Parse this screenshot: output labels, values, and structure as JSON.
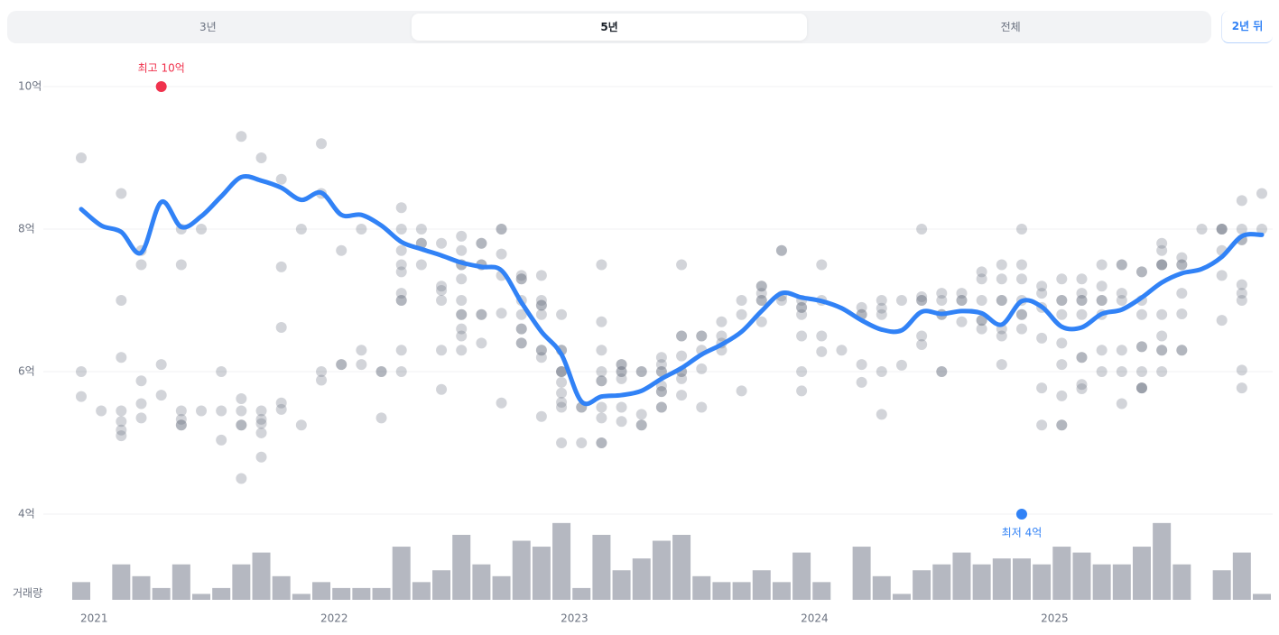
{
  "tabs": [
    {
      "label": "3년",
      "active": false
    },
    {
      "label": "5년",
      "active": true
    },
    {
      "label": "전체",
      "active": false
    }
  ],
  "future_button": "2년 뒤",
  "chart_data": {
    "type": "scatter",
    "categories": [
      "2021",
      null,
      null,
      null,
      null,
      null,
      null,
      null,
      null,
      null,
      null,
      null,
      "2022",
      null,
      null,
      null,
      null,
      null,
      null,
      null,
      null,
      null,
      null,
      null,
      "2023",
      null,
      null,
      null,
      null,
      null,
      null,
      null,
      null,
      null,
      null,
      null,
      "2024",
      null,
      null,
      null,
      null,
      null,
      null,
      null,
      null,
      null,
      null,
      null,
      "2025",
      null,
      null,
      null,
      null,
      null,
      null,
      null,
      null,
      null,
      null,
      null
    ],
    "ylim": [
      4,
      10
    ],
    "yticks": [
      {
        "value": 4,
        "label": "4억"
      },
      {
        "value": 6,
        "label": "6억"
      },
      {
        "value": 8,
        "label": "8억"
      },
      {
        "value": 10,
        "label": "10억"
      }
    ],
    "grid": true,
    "point_color": "#6b7280",
    "points": [
      [
        9.0,
        6.0,
        5.65
      ],
      [
        5.45
      ],
      [
        8.5,
        7.0,
        6.2,
        5.45,
        5.3,
        5.18,
        5.1
      ],
      [
        7.7,
        7.5,
        5.87,
        5.55,
        5.35
      ],
      [
        10,
        6.1,
        5.67
      ],
      [
        8.0,
        7.5,
        5.45,
        5.33,
        5.25,
        5.25
      ],
      [
        8.0,
        5.45
      ],
      [
        6.0,
        5.45,
        5.04
      ],
      [
        9.3,
        5.62,
        5.45,
        5.25,
        5.25,
        4.5
      ],
      [
        9.0,
        5.45,
        5.33,
        5.27,
        5.14,
        4.8
      ],
      [
        8.7,
        7.47,
        6.62,
        5.56,
        5.47
      ],
      [
        8.0,
        5.25
      ],
      [
        9.2,
        8.5,
        6.0,
        5.88
      ],
      [
        7.7,
        6.1,
        6.1
      ],
      [
        8.0,
        6.3,
        6.1
      ],
      [
        6.0,
        6.0,
        5.35
      ],
      [
        8.3,
        8.0,
        7.7,
        7.5,
        7.4,
        7.1,
        7.0,
        7.0,
        6.3,
        6.0
      ],
      [
        8.0,
        7.8,
        7.8,
        7.5
      ],
      [
        7.8,
        7.2,
        7.14,
        7.0,
        6.3,
        5.75
      ],
      [
        7.9,
        7.7,
        7.5,
        7.5,
        7.3,
        7.0,
        6.8,
        6.8,
        6.6,
        6.5,
        6.3
      ],
      [
        7.8,
        7.8,
        7.5,
        7.5,
        6.8,
        6.8,
        6.4
      ],
      [
        8.0,
        8.0,
        7.65,
        7.35,
        6.82,
        5.56
      ],
      [
        7.35,
        7.3,
        7.3,
        7.0,
        6.8,
        6.6,
        6.6,
        6.4,
        6.4
      ],
      [
        7.35,
        7.0,
        6.93,
        6.93,
        6.8,
        6.3,
        6.3,
        6.2,
        5.37
      ],
      [
        6.8,
        6.3,
        6.3,
        6.0,
        6.0,
        6.0,
        5.85,
        5.7,
        5.57,
        5.5,
        5.0
      ],
      [
        5.5,
        5.5,
        5.0
      ],
      [
        7.5,
        6.7,
        6.3,
        6.0,
        5.87,
        5.87,
        5.5,
        5.35,
        5.0,
        5.0
      ],
      [
        6.1,
        6.1,
        6.0,
        6.0,
        5.9,
        5.5,
        5.3
      ],
      [
        6.0,
        6.0,
        5.4,
        5.25,
        5.25
      ],
      [
        6.2,
        6.1,
        6.0,
        6.0,
        5.8,
        5.72,
        5.72,
        5.5,
        5.5
      ],
      [
        7.5,
        6.5,
        6.5,
        6.22,
        6.0,
        6.0,
        5.9,
        5.67
      ],
      [
        6.5,
        6.5,
        6.3,
        6.04,
        5.5
      ],
      [
        6.7,
        6.5,
        6.4,
        6.3
      ],
      [
        7.0,
        6.8,
        5.73
      ],
      [
        7.2,
        7.2,
        7.1,
        7.0,
        7.0,
        6.7
      ],
      [
        7.7,
        7.7,
        7.06,
        7.0
      ],
      [
        7.0,
        6.9,
        6.9,
        6.8,
        6.5,
        6.0,
        5.73
      ],
      [
        7.5,
        7.0,
        6.5,
        6.28
      ],
      [
        6.3
      ],
      [
        6.9,
        6.8,
        6.8,
        6.1,
        5.85
      ],
      [
        7.0,
        6.89,
        6.8,
        6.0,
        5.4
      ],
      [
        7.0,
        6.09
      ],
      [
        8.0,
        7.05,
        7.0,
        7.0,
        6.5,
        6.38
      ],
      [
        7.1,
        7.0,
        6.8,
        6.8,
        6.0,
        6.0
      ],
      [
        7.1,
        7.0,
        7.0,
        6.7
      ],
      [
        7.4,
        7.3,
        7.0,
        6.72,
        6.72,
        6.6
      ],
      [
        7.5,
        7.3,
        7.0,
        7.0,
        6.6,
        6.5,
        6.1
      ],
      [
        8.0,
        7.5,
        7.3,
        7.0,
        6.8,
        6.8,
        6.6,
        4.0
      ],
      [
        7.2,
        7.1,
        6.9,
        6.47,
        5.77,
        5.25
      ],
      [
        7.3,
        7.0,
        7.0,
        6.8,
        6.4,
        6.1,
        5.66,
        5.25,
        5.25
      ],
      [
        7.3,
        7.1,
        7.0,
        7.0,
        6.8,
        6.2,
        6.2,
        5.82,
        5.76
      ],
      [
        7.5,
        7.2,
        7.0,
        7.0,
        6.8,
        6.3,
        6.0
      ],
      [
        7.5,
        7.5,
        7.1,
        7.0,
        6.3,
        6.0,
        5.55
      ],
      [
        7.4,
        7.4,
        7.0,
        6.8,
        6.35,
        6.35,
        6.0,
        5.77,
        5.77,
        5.77
      ],
      [
        7.8,
        7.7,
        7.5,
        7.5,
        7.5,
        6.8,
        6.5,
        6.3,
        6.3,
        6.0
      ],
      [
        7.6,
        7.5,
        7.5,
        7.1,
        6.81,
        6.3,
        6.3
      ],
      [
        8.0
      ],
      [
        8.0,
        8.0,
        8.0,
        7.7,
        7.35,
        6.72
      ],
      [
        8.4,
        8.0,
        7.85,
        7.85,
        7.22,
        7.1,
        7.0,
        6.02,
        5.77
      ],
      [
        8.5,
        8.0
      ]
    ],
    "trend": {
      "color": "#3182f6",
      "values": [
        8.28,
        8.05,
        7.96,
        7.67,
        8.38,
        8.03,
        8.18,
        8.46,
        8.73,
        8.68,
        8.58,
        8.41,
        8.51,
        8.2,
        8.2,
        8.05,
        7.82,
        7.72,
        7.63,
        7.53,
        7.47,
        7.42,
        6.97,
        6.56,
        6.24,
        5.58,
        5.65,
        5.67,
        5.73,
        5.9,
        6.05,
        6.24,
        6.38,
        6.56,
        6.85,
        7.1,
        7.04,
        6.99,
        6.89,
        6.72,
        6.59,
        6.58,
        6.84,
        6.81,
        6.85,
        6.82,
        6.66,
        6.99,
        6.91,
        6.63,
        6.62,
        6.81,
        6.87,
        7.04,
        7.25,
        7.38,
        7.44,
        7.61,
        7.9,
        7.92
      ]
    },
    "volume": {
      "label": "거래량",
      "color": "#b5b8c1",
      "values": [
        3,
        0,
        6,
        4,
        2,
        6,
        1,
        2,
        6,
        8,
        4,
        1,
        3,
        2,
        2,
        2,
        9,
        3,
        5,
        11,
        6,
        4,
        10,
        9,
        13,
        2,
        11,
        5,
        7,
        10,
        11,
        4,
        3,
        3,
        5,
        3,
        8,
        3,
        0,
        9,
        4,
        1,
        5,
        6,
        8,
        6,
        7,
        7,
        6,
        9,
        8,
        6,
        6,
        9,
        13,
        6,
        0,
        5,
        8,
        1
      ]
    },
    "high": {
      "label": "최고 10억",
      "color": "#f0324d"
    },
    "low": {
      "label": "최저 4억",
      "color": "#3182f6"
    }
  }
}
